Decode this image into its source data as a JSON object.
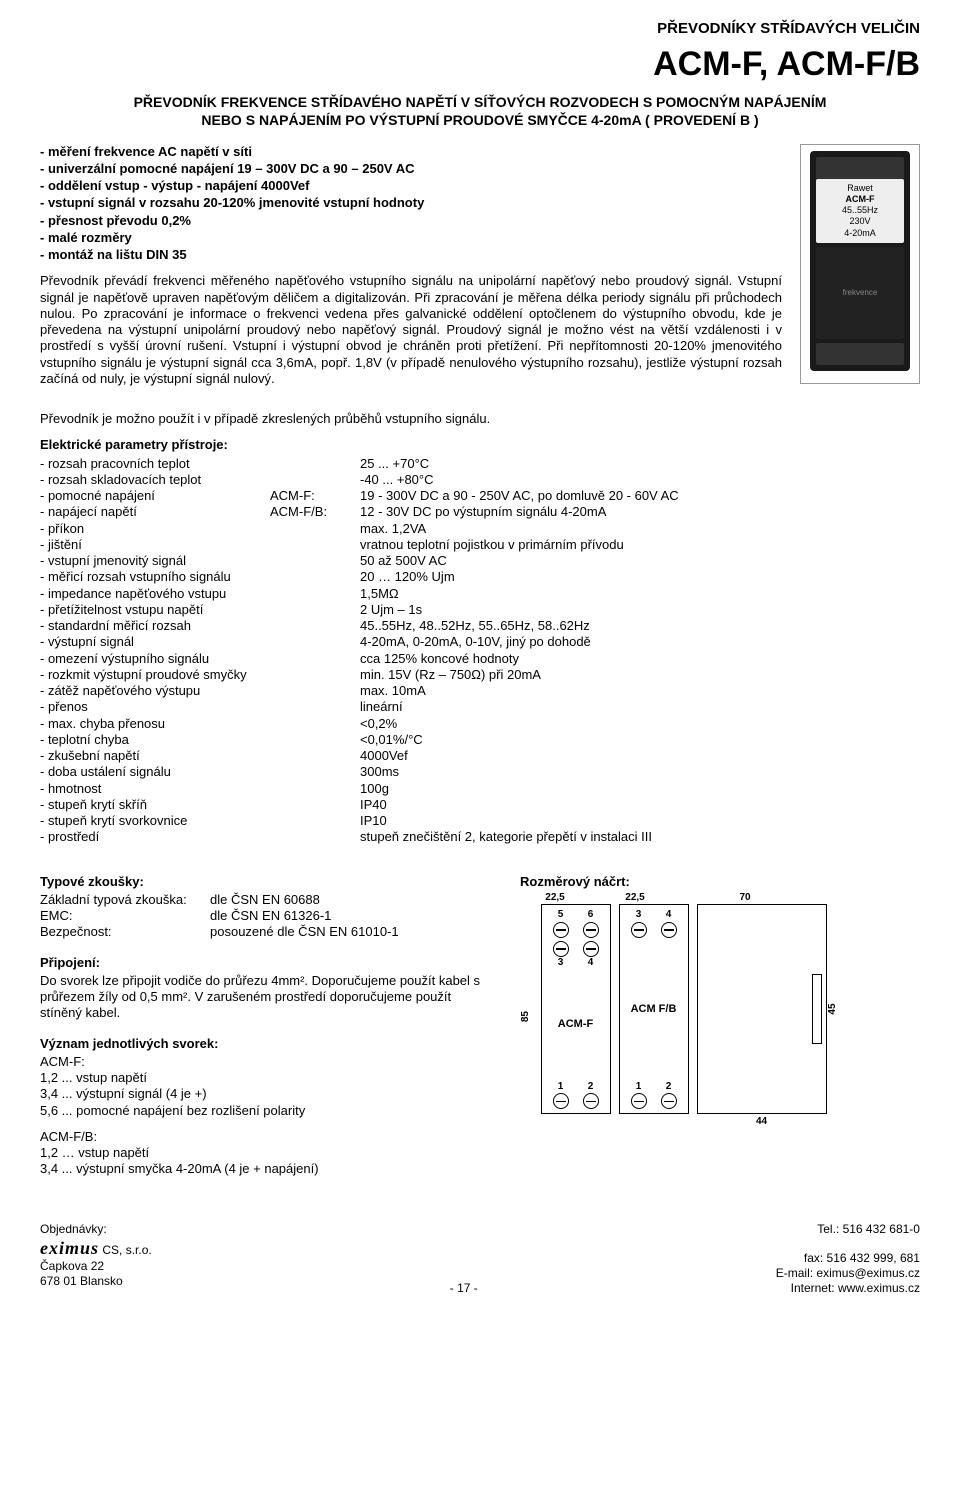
{
  "header": {
    "category": "PŘEVODNÍKY STŘÍDAVÝCH VELIČIN",
    "model": "ACM-F, ACM-F/B",
    "subtitle_line1": "PŘEVODNÍK FREKVENCE STŘÍDAVÉHO NAPĚTÍ V SÍŤOVÝCH ROZVODECH S POMOCNÝM NAPÁJENÍM",
    "subtitle_line2": "NEBO S NAPÁJENÍM PO VÝSTUPNÍ PROUDOVÉ SMYČCE 4-20mA  ( PROVEDENÍ B )"
  },
  "features": [
    "- měření frekvence AC napětí v síti",
    "- univerzální pomocné napájení 19 – 300V DC a 90 – 250V AC",
    "- oddělení vstup - výstup - napájení 4000Vef",
    "- vstupní signál v rozsahu 20-120% jmenovité vstupní hodnoty",
    "- přesnost převodu 0,2%",
    "- malé rozměry",
    "- montáž na lištu DIN 35"
  ],
  "description": "Převodník převádí frekvenci měřeného napěťového vstupního signálu na unipolární napěťový nebo proudový signál. Vstupní signál je napěťově upraven napěťovým děličem a digitalizován. Při zpracování je měřena délka periody signálu při průchodech nulou. Po zpracování je informace o frekvenci vedena přes galvanické oddělení optočlenem do výstupního obvodu, kde je převedena na výstupní unipolární proudový nebo napěťový signál. Proudový signál je možno vést na větší vzdálenosti i v prostředí s vyšší úrovní rušení. Vstupní i výstupní obvod je chráněn proti přetížení. Při nepřítomnosti 20-120% jmenovitého vstupního signálu je výstupní signál cca 3,6mA, popř. 1,8V (v případě nenulového výstupního rozsahu), jestliže výstupní rozsah začíná od nuly, je výstupní signál nulový.",
  "desc2": "Převodník je možno použít i v případě zkreslených průběhů vstupního signálu.",
  "product_label": {
    "name": "ACM-F",
    "brand": "Rawet",
    "freq": "45..55Hz",
    "volt": "230V",
    "out": "4-20mA"
  },
  "params_heading": "Elektrické parametry přístroje:",
  "params": [
    {
      "k": "- rozsah pracovních teplot",
      "m": "",
      "v": "25 ... +70°C"
    },
    {
      "k": "- rozsah skladovacích teplot",
      "m": "",
      "v": "-40 ... +80°C"
    },
    {
      "k": "- pomocné napájení",
      "m": "ACM-F:",
      "v": "19 - 300V DC a 90 - 250V AC, po domluvě 20 - 60V AC"
    },
    {
      "k": "- napájecí napětí",
      "m": "ACM-F/B:",
      "v": "12 - 30V DC po výstupním signálu 4-20mA"
    },
    {
      "k": "- příkon",
      "m": "",
      "v": "max. 1,2VA"
    },
    {
      "k": "- jištění",
      "m": "",
      "v": "vratnou teplotní pojistkou v primárním přívodu"
    },
    {
      "k": "- vstupní jmenovitý signál",
      "m": "",
      "v": "50 až 500V AC"
    },
    {
      "k": "- měřicí rozsah vstupního signálu",
      "m": "",
      "v": "20 … 120% Ujm"
    },
    {
      "k": "- impedance napěťového vstupu",
      "m": "",
      "v": "1,5MΩ"
    },
    {
      "k": "- přetížitelnost vstupu napětí",
      "m": "",
      "v": "2 Ujm – 1s"
    },
    {
      "k": "- standardní měřicí rozsah",
      "m": "",
      "v": "45..55Hz, 48..52Hz, 55..65Hz, 58..62Hz"
    },
    {
      "k": "- výstupní signál",
      "m": "",
      "v": "4-20mA, 0-20mA, 0-10V, jiný po dohodě"
    },
    {
      "k": "- omezení výstupního signálu",
      "m": "",
      "v": "cca 125% koncové hodnoty"
    },
    {
      "k": "- rozkmit výstupní proudové smyčky",
      "m": "",
      "v": "min. 15V (Rz – 750Ω) při 20mA"
    },
    {
      "k": "- zátěž napěťového výstupu",
      "m": "",
      "v": "max. 10mA"
    },
    {
      "k": "- přenos",
      "m": "",
      "v": "lineární"
    },
    {
      "k": "- max. chyba přenosu",
      "m": "",
      "v": "<0,2%"
    },
    {
      "k": "- teplotní chyba",
      "m": "",
      "v": "<0,01%/°C"
    },
    {
      "k": "- zkušební napětí",
      "m": "",
      "v": "4000Vef"
    },
    {
      "k": "- doba ustálení signálu",
      "m": "",
      "v": "300ms"
    },
    {
      "k": "- hmotnost",
      "m": "",
      "v": "100g"
    },
    {
      "k": "- stupeň krytí skříň",
      "m": "",
      "v": "IP40"
    },
    {
      "k": "- stupeň krytí svorkovnice",
      "m": "",
      "v": "IP10"
    },
    {
      "k": "- prostředí",
      "m": "",
      "v": "stupeň znečištění 2, kategorie přepětí v instalaci III"
    }
  ],
  "tests_heading": "Typové zkoušky:",
  "tests": [
    {
      "k": "Základní typová zkouška:",
      "v": "dle ČSN EN 60688"
    },
    {
      "k": "EMC:",
      "v": "dle ČSN EN 61326-1"
    },
    {
      "k": "Bezpečnost:",
      "v": "posouzené dle ČSN EN 61010-1"
    }
  ],
  "conn_heading": "Připojení:",
  "conn_text": "Do svorek lze připojit vodiče do průřezu 4mm². Doporučujeme použít kabel s průřezem žíly od 0,5 mm². V zarušeném prostředí doporučujeme použít stíněný kabel.",
  "term_heading": "Význam jednotlivých svorek:",
  "term_a_name": "ACM-F:",
  "term_a": [
    "1,2 ... vstup napětí",
    "3,4 ... výstupní signál (4 je +)",
    "5,6 ... pomocné napájení bez rozlišení polarity"
  ],
  "term_b_name": "ACM-F/B:",
  "term_b": [
    "1,2 … vstup napětí",
    "3,4 ... výstupní smyčka 4-20mA (4 je + napájení)"
  ],
  "dim_heading": "Rozměrový náčrt:",
  "dim": {
    "w1": "22,5",
    "w2": "22,5",
    "d": "70",
    "h": "85",
    "side_h": "45",
    "side_w": "44",
    "t56": "5    6",
    "t34": "3    4",
    "t12": "1    2",
    "mod1": "ACM-F",
    "mod2": "ACM F/B"
  },
  "footer": {
    "orders": "Objednávky:",
    "company": "CS, s.r.o.",
    "addr1": "Čapkova 22",
    "addr2": "678 01  Blansko",
    "tel": "Tel.: 516 432 681-0",
    "fax": "fax: 516 432 999, 681",
    "email": "E-mail: eximus@eximus.cz",
    "web": "Internet: www.eximus.cz",
    "brand": "eximus",
    "page": "- 17 -"
  }
}
